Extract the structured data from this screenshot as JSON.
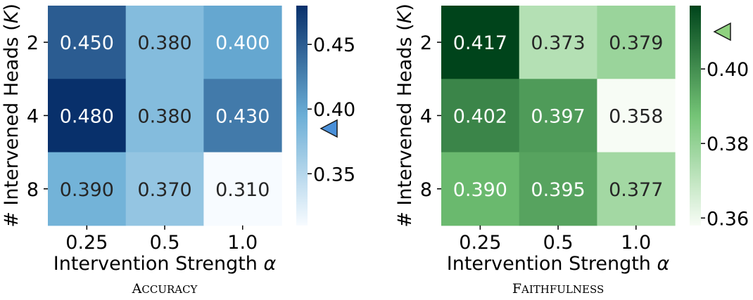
{
  "chart_data": [
    {
      "type": "heatmap",
      "subtitle": "Accuracy",
      "xlabel": "Intervention Strength α",
      "ylabel": "# Intervened Heads (K)",
      "x_categories": [
        "0.25",
        "0.5",
        "1.0"
      ],
      "y_categories": [
        "2",
        "4",
        "8"
      ],
      "values": [
        [
          0.45,
          0.38,
          0.4
        ],
        [
          0.48,
          0.38,
          0.43
        ],
        [
          0.39,
          0.37,
          0.31
        ]
      ],
      "value_labels": [
        [
          "0.450",
          "0.380",
          "0.400"
        ],
        [
          "0.480",
          "0.380",
          "0.430"
        ],
        [
          "0.390",
          "0.370",
          "0.310"
        ]
      ],
      "colormap": "Blues",
      "colors": {
        "low": "#f7fbff",
        "mid": "#6baed6",
        "high": "#08306b",
        "text_dark": "#262626",
        "text_light": "#ffffff",
        "marker": "#4a90d9"
      },
      "colorbar": {
        "range": [
          0.31,
          0.48
        ],
        "ticks": [
          0.35,
          0.4,
          0.45
        ],
        "tick_labels": [
          "0.35",
          "0.40",
          "0.45"
        ]
      },
      "marker": {
        "shape": "left-pointing triangle",
        "value": 0.385
      }
    },
    {
      "type": "heatmap",
      "subtitle": "Faithfulness",
      "xlabel": "Intervention Strength α",
      "ylabel": "# Intervened Heads (K)",
      "x_categories": [
        "0.25",
        "0.5",
        "1.0"
      ],
      "y_categories": [
        "2",
        "4",
        "8"
      ],
      "values": [
        [
          0.417,
          0.373,
          0.379
        ],
        [
          0.402,
          0.397,
          0.358
        ],
        [
          0.39,
          0.395,
          0.377
        ]
      ],
      "value_labels": [
        [
          "0.417",
          "0.373",
          "0.379"
        ],
        [
          "0.402",
          "0.397",
          "0.358"
        ],
        [
          "0.390",
          "0.395",
          "0.377"
        ]
      ],
      "colormap": "Greens",
      "colors": {
        "low": "#f7fcf5",
        "mid": "#74c476",
        "high": "#00441b",
        "text_dark": "#262626",
        "text_light": "#ffffff",
        "marker": "#8fd17f"
      },
      "colorbar": {
        "range": [
          0.358,
          0.417
        ],
        "ticks": [
          0.36,
          0.38,
          0.4
        ],
        "tick_labels": [
          "0.36",
          "0.38",
          "0.40"
        ]
      },
      "marker": {
        "shape": "left-pointing triangle",
        "value": 0.41
      }
    }
  ]
}
